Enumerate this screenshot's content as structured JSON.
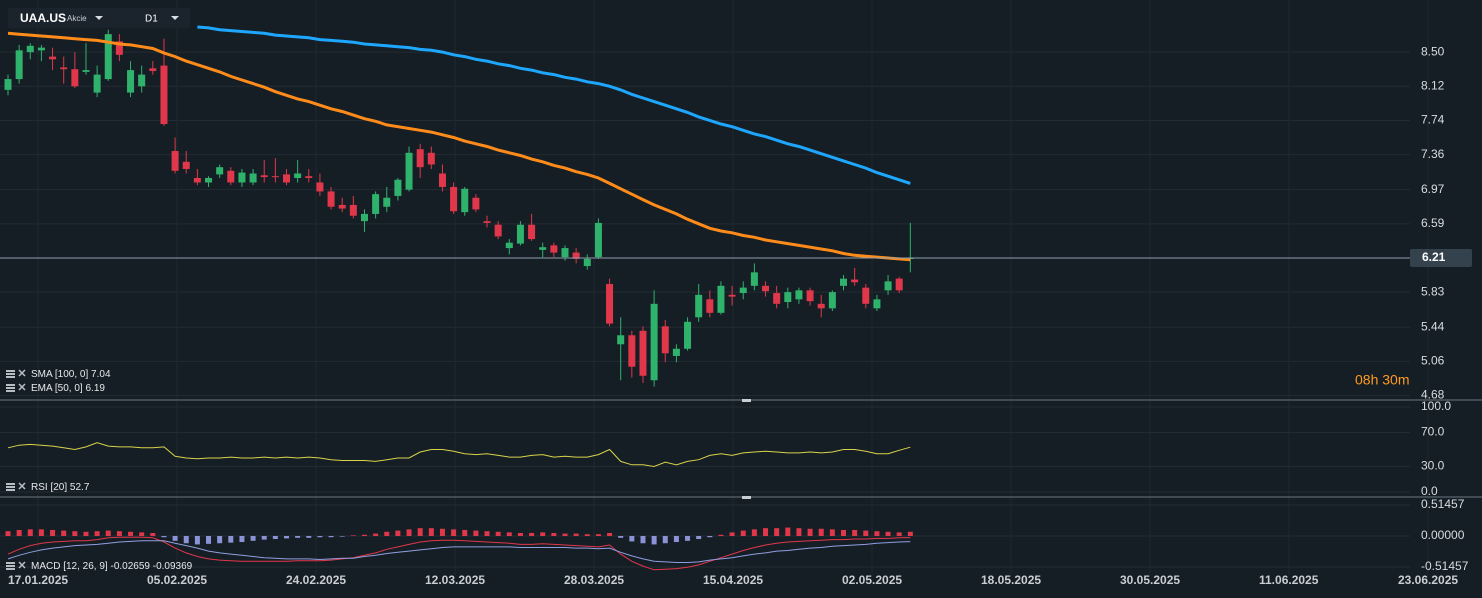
{
  "chart_data": [
    {
      "type": "candlestick",
      "title": "UAA.US",
      "subtitle": "Akcie",
      "timeframe": "D1",
      "ylim": [
        4.63,
        9.08
      ],
      "yticks": [
        {
          "value": 8.5,
          "label": "8.50"
        },
        8.12,
        7.74,
        7.36,
        6.97,
        6.59,
        5.83,
        5.44,
        5.06,
        4.68
      ],
      "current_price": 6.21,
      "countdown": "08h 30m",
      "grid": true,
      "up_color": "#2fb36c",
      "down_color": "#e0374a",
      "x_labels": [
        "17.01.2025",
        "05.02.2025",
        "24.02.2025",
        "12.03.2025",
        "28.03.2025",
        "15.04.2025",
        "02.05.2025",
        "18.05.2025",
        "30.05.2025",
        "11.06.2025",
        "23.06.2025"
      ],
      "open": [
        8.08,
        8.2,
        8.5,
        8.52,
        8.45,
        8.33,
        8.31,
        8.28,
        8.05,
        8.2,
        8.62,
        8.05,
        8.12,
        8.32,
        8.35,
        7.4,
        7.28,
        7.1,
        7.05,
        7.14,
        7.18,
        7.05,
        7.05,
        7.13,
        7.12,
        7.14,
        7.1,
        7.12,
        7.05,
        6.95,
        6.8,
        6.8,
        6.62,
        6.7,
        6.78,
        6.9,
        6.97,
        7.42,
        7.38,
        7.15,
        7.0,
        6.72,
        6.88,
        6.62,
        6.58,
        6.32,
        6.37,
        6.58,
        6.3,
        6.35,
        6.22,
        6.27,
        6.12,
        6.22,
        5.92,
        5.25,
        5.35,
        5.4,
        4.85,
        5.45,
        5.12,
        5.2,
        5.55,
        5.75,
        5.6,
        5.8,
        5.82,
        5.9,
        5.9,
        5.82,
        5.72,
        5.75,
        5.85,
        5.7,
        5.65,
        5.9,
        5.97,
        5.88,
        5.65,
        5.85,
        5.98,
        6.2
      ],
      "high": [
        8.25,
        8.58,
        8.6,
        8.58,
        8.55,
        8.45,
        8.5,
        8.6,
        8.35,
        8.75,
        8.7,
        8.4,
        8.35,
        8.4,
        8.65,
        7.55,
        7.4,
        7.2,
        7.12,
        7.25,
        7.22,
        7.2,
        7.2,
        7.3,
        7.32,
        7.2,
        7.3,
        7.2,
        7.15,
        7.0,
        6.88,
        6.9,
        6.75,
        6.95,
        7.0,
        7.1,
        7.45,
        7.48,
        7.45,
        7.25,
        7.05,
        7.0,
        6.92,
        6.68,
        6.62,
        6.42,
        6.62,
        6.7,
        6.38,
        6.38,
        6.35,
        6.32,
        6.25,
        6.65,
        5.98,
        5.55,
        5.4,
        5.45,
        5.85,
        5.52,
        5.25,
        5.55,
        5.92,
        5.85,
        5.95,
        5.9,
        5.95,
        6.15,
        5.95,
        5.9,
        5.88,
        5.88,
        5.88,
        5.8,
        5.85,
        6.02,
        6.1,
        5.92,
        5.8,
        6.02,
        6.0,
        6.6
      ],
      "low": [
        8.02,
        8.15,
        8.42,
        8.4,
        8.3,
        8.15,
        8.1,
        8.25,
        8.0,
        8.18,
        8.4,
        8.0,
        8.05,
        8.25,
        7.68,
        7.15,
        7.15,
        7.02,
        7.0,
        7.1,
        7.02,
        7.0,
        7.02,
        7.05,
        7.05,
        7.02,
        7.05,
        7.05,
        6.9,
        6.75,
        6.72,
        6.65,
        6.5,
        6.65,
        6.72,
        6.85,
        6.95,
        7.1,
        7.2,
        6.95,
        6.7,
        6.68,
        6.72,
        6.55,
        6.42,
        6.25,
        6.35,
        6.4,
        6.22,
        6.22,
        6.18,
        6.15,
        6.08,
        6.2,
        5.45,
        4.85,
        4.88,
        4.82,
        4.78,
        5.05,
        5.05,
        5.18,
        5.5,
        5.55,
        5.58,
        5.68,
        5.75,
        5.85,
        5.78,
        5.65,
        5.65,
        5.7,
        5.68,
        5.55,
        5.62,
        5.85,
        5.9,
        5.65,
        5.62,
        5.8,
        5.82,
        6.05
      ],
      "close": [
        8.2,
        8.52,
        8.57,
        8.55,
        8.42,
        8.31,
        8.12,
        8.3,
        8.25,
        8.7,
        8.47,
        8.3,
        8.25,
        8.29,
        7.7,
        7.18,
        7.2,
        7.05,
        7.1,
        7.22,
        7.05,
        7.16,
        7.15,
        7.11,
        7.11,
        7.05,
        7.15,
        7.1,
        6.95,
        6.78,
        6.76,
        6.68,
        6.7,
        6.92,
        6.88,
        7.08,
        7.38,
        7.22,
        7.25,
        7.0,
        6.73,
        6.98,
        6.75,
        6.6,
        6.45,
        6.38,
        6.58,
        6.42,
        6.33,
        6.27,
        6.32,
        6.2,
        6.2,
        6.6,
        5.48,
        5.35,
        5.0,
        4.9,
        5.7,
        5.15,
        5.2,
        5.5,
        5.8,
        5.6,
        5.9,
        5.78,
        5.88,
        6.05,
        5.84,
        5.7,
        5.83,
        5.85,
        5.73,
        5.65,
        5.83,
        5.98,
        5.94,
        5.7,
        5.75,
        5.95,
        5.85,
        6.21
      ],
      "series": [
        {
          "name": "SMA [100, 0]",
          "value": 7.04,
          "color": "#1ea7ff",
          "values": [
            null,
            null,
            null,
            null,
            null,
            null,
            null,
            null,
            null,
            null,
            null,
            null,
            null,
            null,
            null,
            null,
            null,
            8.78,
            8.77,
            8.75,
            8.74,
            8.73,
            8.72,
            8.71,
            8.69,
            8.68,
            8.67,
            8.66,
            8.64,
            8.63,
            8.62,
            8.61,
            8.59,
            8.58,
            8.57,
            8.56,
            8.55,
            8.53,
            8.52,
            8.5,
            8.47,
            8.45,
            8.42,
            8.4,
            8.37,
            8.35,
            8.32,
            8.3,
            8.27,
            8.25,
            8.22,
            8.2,
            8.17,
            8.15,
            8.12,
            8.08,
            8.03,
            7.99,
            7.95,
            7.91,
            7.87,
            7.83,
            7.78,
            7.74,
            7.7,
            7.67,
            7.63,
            7.59,
            7.56,
            7.52,
            7.48,
            7.45,
            7.41,
            7.37,
            7.33,
            7.29,
            7.25,
            7.21,
            7.16,
            7.12,
            7.08,
            7.04
          ]
        },
        {
          "name": "EMA [50, 0]",
          "value": 6.19,
          "color": "#ff8c1a",
          "values": [
            8.71,
            8.7,
            8.69,
            8.68,
            8.67,
            8.66,
            8.65,
            8.64,
            8.63,
            8.61,
            8.59,
            8.58,
            8.56,
            8.54,
            8.49,
            8.45,
            8.4,
            8.36,
            8.32,
            8.28,
            8.23,
            8.19,
            8.15,
            8.11,
            8.06,
            8.02,
            7.98,
            7.95,
            7.91,
            7.87,
            7.84,
            7.8,
            7.76,
            7.73,
            7.69,
            7.67,
            7.65,
            7.63,
            7.61,
            7.58,
            7.55,
            7.51,
            7.48,
            7.45,
            7.41,
            7.38,
            7.35,
            7.31,
            7.28,
            7.24,
            7.21,
            7.17,
            7.14,
            7.1,
            7.04,
            6.98,
            6.92,
            6.86,
            6.8,
            6.75,
            6.7,
            6.64,
            6.59,
            6.54,
            6.51,
            6.49,
            6.46,
            6.44,
            6.41,
            6.39,
            6.37,
            6.35,
            6.33,
            6.31,
            6.29,
            6.26,
            6.24,
            6.23,
            6.22,
            6.21,
            6.2,
            6.19
          ]
        }
      ]
    },
    {
      "type": "line",
      "ylim": [
        -5.9,
        108.2
      ],
      "yticks": [
        {
          "value": 100,
          "label": "100.0"
        },
        {
          "value": 70,
          "label": "70.0"
        },
        {
          "value": 30,
          "label": "30.0"
        },
        {
          "value": 0,
          "label": "0.0"
        }
      ],
      "series": [
        {
          "name": "RSI [20]",
          "value": 52.7,
          "color": "#d9d24a",
          "values": [
            52,
            55,
            56,
            55,
            54,
            52,
            50,
            53,
            58,
            54,
            53,
            53,
            52,
            52,
            53,
            42,
            40,
            39,
            40,
            40,
            41,
            40,
            40,
            41,
            40,
            41,
            40,
            41,
            40,
            38,
            37,
            37,
            37,
            36,
            38,
            40,
            40,
            47,
            50,
            50,
            48,
            45,
            44,
            45,
            43,
            41,
            41,
            43,
            44,
            41,
            42,
            41,
            41,
            44,
            50,
            36,
            32,
            32,
            30,
            35,
            32,
            36,
            38,
            43,
            45,
            43,
            46,
            47,
            48,
            47,
            46,
            46,
            47,
            46,
            47,
            50,
            50,
            48,
            45,
            45,
            49,
            52.7
          ]
        }
      ]
    },
    {
      "type": "macd",
      "ylim": [
        -0.647,
        0.647
      ],
      "yticks": [
        0.51457,
        {
          "value": 0,
          "label": "0.00000"
        },
        -0.51457
      ],
      "histogram": {
        "up_color": "#e0374a",
        "down_color": "#8b93d6",
        "values": [
          0.08,
          0.1,
          0.11,
          0.11,
          0.1,
          0.09,
          0.08,
          0.07,
          0.08,
          0.09,
          0.08,
          0.07,
          0.06,
          0.05,
          -0.02,
          -0.08,
          -0.12,
          -0.14,
          -0.13,
          -0.12,
          -0.11,
          -0.1,
          -0.08,
          -0.06,
          -0.05,
          -0.04,
          -0.03,
          -0.03,
          -0.02,
          -0.02,
          -0.01,
          0.01,
          0.02,
          0.04,
          0.07,
          0.09,
          0.11,
          0.13,
          0.13,
          0.12,
          0.11,
          0.1,
          0.09,
          0.08,
          0.07,
          0.06,
          0.05,
          0.05,
          0.06,
          0.05,
          0.04,
          0.04,
          0.03,
          0.03,
          0.05,
          -0.03,
          -0.09,
          -0.12,
          -0.14,
          -0.12,
          -0.1,
          -0.08,
          -0.05,
          -0.02,
          0.02,
          0.06,
          0.09,
          0.11,
          0.13,
          0.13,
          0.14,
          0.13,
          0.12,
          0.12,
          0.11,
          0.1,
          0.1,
          0.09,
          0.08,
          0.07,
          0.06,
          0.07
        ]
      },
      "series": [
        {
          "name": "MACD [12, 26, 9]",
          "value": -0.02659,
          "color": "#e0374a",
          "values": [
            -0.3,
            -0.22,
            -0.16,
            -0.12,
            -0.1,
            -0.09,
            -0.08,
            -0.08,
            -0.06,
            -0.03,
            -0.02,
            -0.02,
            -0.02,
            -0.03,
            -0.1,
            -0.2,
            -0.28,
            -0.34,
            -0.38,
            -0.4,
            -0.41,
            -0.42,
            -0.42,
            -0.42,
            -0.42,
            -0.42,
            -0.41,
            -0.41,
            -0.41,
            -0.4,
            -0.38,
            -0.36,
            -0.32,
            -0.28,
            -0.22,
            -0.18,
            -0.14,
            -0.1,
            -0.08,
            -0.07,
            -0.07,
            -0.08,
            -0.09,
            -0.1,
            -0.11,
            -0.12,
            -0.14,
            -0.14,
            -0.13,
            -0.14,
            -0.15,
            -0.16,
            -0.17,
            -0.18,
            -0.15,
            -0.3,
            -0.42,
            -0.5,
            -0.56,
            -0.55,
            -0.54,
            -0.52,
            -0.48,
            -0.42,
            -0.36,
            -0.3,
            -0.24,
            -0.19,
            -0.15,
            -0.12,
            -0.1,
            -0.09,
            -0.08,
            -0.07,
            -0.06,
            -0.06,
            -0.05,
            -0.05,
            -0.04,
            -0.04,
            -0.03,
            -0.02659
          ]
        },
        {
          "value": -0.09369,
          "color": "#8f9fe0",
          "values": [
            -0.38,
            -0.32,
            -0.27,
            -0.23,
            -0.2,
            -0.18,
            -0.16,
            -0.15,
            -0.14,
            -0.12,
            -0.1,
            -0.09,
            -0.08,
            -0.08,
            -0.08,
            -0.12,
            -0.16,
            -0.2,
            -0.25,
            -0.28,
            -0.3,
            -0.32,
            -0.34,
            -0.36,
            -0.37,
            -0.38,
            -0.38,
            -0.38,
            -0.39,
            -0.38,
            -0.37,
            -0.37,
            -0.34,
            -0.32,
            -0.29,
            -0.27,
            -0.25,
            -0.23,
            -0.21,
            -0.19,
            -0.18,
            -0.18,
            -0.18,
            -0.18,
            -0.18,
            -0.18,
            -0.19,
            -0.19,
            -0.19,
            -0.19,
            -0.19,
            -0.2,
            -0.2,
            -0.21,
            -0.2,
            -0.27,
            -0.33,
            -0.38,
            -0.42,
            -0.43,
            -0.44,
            -0.44,
            -0.43,
            -0.4,
            -0.38,
            -0.36,
            -0.33,
            -0.3,
            -0.28,
            -0.25,
            -0.24,
            -0.22,
            -0.2,
            -0.19,
            -0.17,
            -0.16,
            -0.15,
            -0.14,
            -0.12,
            -0.11,
            -0.1,
            -0.09369
          ]
        }
      ]
    }
  ]
}
